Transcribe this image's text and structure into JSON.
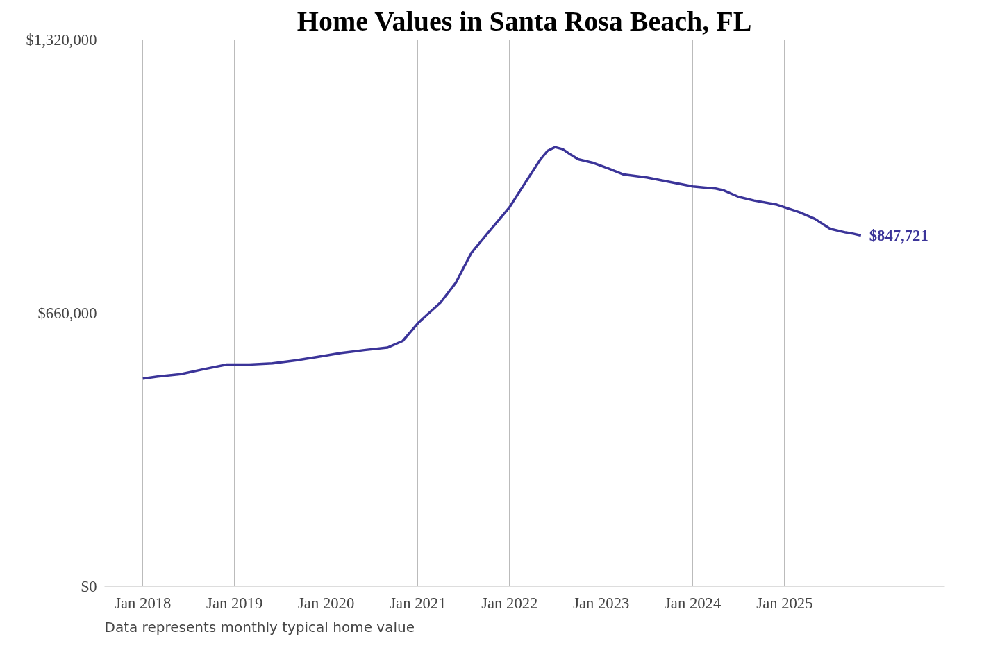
{
  "chart_data": {
    "type": "line",
    "title": "Home Values in Santa Rosa Beach, FL",
    "x": [
      "2018-01",
      "2018-03",
      "2018-06",
      "2018-09",
      "2018-12",
      "2019-03",
      "2019-06",
      "2019-09",
      "2019-12",
      "2020-03",
      "2020-06",
      "2020-09",
      "2020-11",
      "2021-01",
      "2021-04",
      "2021-06",
      "2021-08",
      "2021-10",
      "2022-01",
      "2022-03",
      "2022-05",
      "2022-06",
      "2022-07",
      "2022-08",
      "2022-09",
      "2022-10",
      "2022-12",
      "2023-02",
      "2023-04",
      "2023-07",
      "2023-10",
      "2024-01",
      "2024-04",
      "2024-05",
      "2024-07",
      "2024-09",
      "2024-12",
      "2025-03",
      "2025-05",
      "2025-07",
      "2025-09",
      "2025-10",
      "2025-11"
    ],
    "series": [
      {
        "color": "#3b3499",
        "values": [
          502000,
          507000,
          513000,
          525000,
          536000,
          536000,
          539000,
          546000,
          555000,
          564000,
          571000,
          577000,
          593000,
          636000,
          686000,
          734000,
          805000,
          850000,
          916000,
          972000,
          1029000,
          1052000,
          1061000,
          1056000,
          1043000,
          1032000,
          1023000,
          1009000,
          995000,
          988000,
          977000,
          966000,
          961000,
          957000,
          941000,
          932000,
          922000,
          904000,
          888000,
          864000,
          855000,
          852000,
          847721
        ],
        "value_labels": [
          null,
          null,
          null,
          null,
          null,
          null,
          null,
          null,
          null,
          null,
          null,
          null,
          null,
          null,
          null,
          null,
          null,
          null,
          null,
          null,
          null,
          null,
          null,
          null,
          null,
          null,
          null,
          null,
          null,
          null,
          null,
          null,
          null,
          null,
          null,
          null,
          null,
          null,
          null,
          null,
          null,
          null,
          "$847,721"
        ]
      }
    ],
    "xticks": [
      {
        "value": "2018-01",
        "label": "Jan 2018"
      },
      {
        "value": "2019-01",
        "label": "Jan 2019"
      },
      {
        "value": "2020-01",
        "label": "Jan 2020"
      },
      {
        "value": "2021-01",
        "label": "Jan 2021"
      },
      {
        "value": "2022-01",
        "label": "Jan 2022"
      },
      {
        "value": "2023-01",
        "label": "Jan 2023"
      },
      {
        "value": "2024-01",
        "label": "Jan 2024"
      },
      {
        "value": "2025-01",
        "label": "Jan 2025"
      }
    ],
    "ylim": [
      0,
      1320000
    ],
    "yticks": [
      {
        "value": 0,
        "label": "$0"
      },
      {
        "value": 660000,
        "label": "$660,000"
      },
      {
        "value": 1320000,
        "label": "$1,320,000"
      }
    ],
    "xlim": [
      "2017-08",
      "2026-10"
    ],
    "grid": "x",
    "marker": "none",
    "line_style": "solid",
    "annotations": [
      "Data represents monthly typical home value"
    ]
  }
}
